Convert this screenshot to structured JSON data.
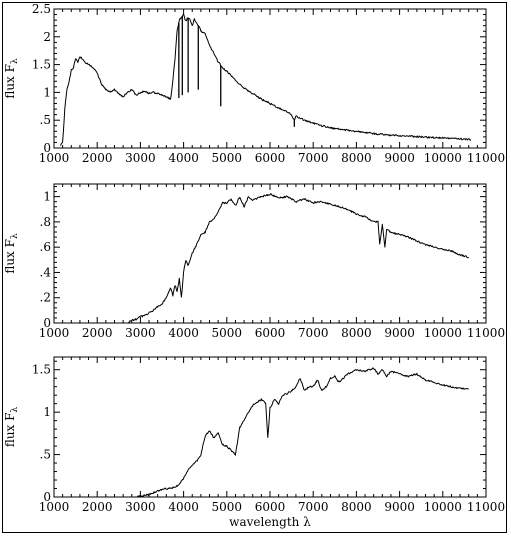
{
  "chart_data": [
    {
      "type": "line",
      "title": "",
      "xlabel": "",
      "ylabel": "flux F",
      "ylabel_sub": "λ",
      "xlim": [
        1000,
        11000
      ],
      "ylim": [
        0,
        2.5
      ],
      "xticks": [
        1000,
        2000,
        3000,
        4000,
        5000,
        6000,
        7000,
        8000,
        9000,
        10000,
        11000
      ],
      "xtick_labels": [
        "1000",
        "2000",
        "3000",
        "4000",
        "5000",
        "6000",
        "7000",
        "8000",
        "9000",
        "10000",
        "11000"
      ],
      "yticks": [
        0,
        0.5,
        1,
        1.5,
        2,
        2.5
      ],
      "ytick_labels": [
        "0",
        ".5",
        "1",
        "1.5",
        "2",
        "2.5"
      ],
      "grid": false,
      "series": [
        {
          "x": [
            1150,
            1200,
            1250,
            1300,
            1350,
            1400,
            1450,
            1500,
            1550,
            1600,
            1700,
            1800,
            1900,
            2000,
            2100,
            2200,
            2300,
            2400,
            2500,
            2600,
            2700,
            2800,
            2900,
            3000,
            3100,
            3200,
            3300,
            3400,
            3500,
            3600,
            3700,
            3750,
            3800,
            3850,
            3900,
            3950,
            4000,
            4050,
            4100,
            4150,
            4200,
            4250,
            4300,
            4350,
            4400,
            4500,
            4600,
            4700,
            4800,
            4900,
            5000,
            5200,
            5400,
            5600,
            5800,
            6000,
            6200,
            6400,
            6500,
            6560,
            6600,
            6800,
            7000,
            7200,
            7500,
            8000,
            8500,
            9000,
            9500,
            10000,
            10500,
            10650
          ],
          "y": [
            0.05,
            0.1,
            0.7,
            1.05,
            1.2,
            1.4,
            1.45,
            1.6,
            1.55,
            1.65,
            1.55,
            1.5,
            1.45,
            1.35,
            1.15,
            1.05,
            1.0,
            1.05,
            0.98,
            0.92,
            1.0,
            1.05,
            0.95,
            1.0,
            1.02,
            0.98,
            1.0,
            0.98,
            0.95,
            0.92,
            0.88,
            1.2,
            1.6,
            2.1,
            2.3,
            2.35,
            2.4,
            2.28,
            2.35,
            2.3,
            2.2,
            2.32,
            2.25,
            2.2,
            2.1,
            2.05,
            1.85,
            1.7,
            1.55,
            1.45,
            1.38,
            1.22,
            1.08,
            0.98,
            0.88,
            0.8,
            0.72,
            0.65,
            0.6,
            0.5,
            0.57,
            0.5,
            0.45,
            0.4,
            0.35,
            0.3,
            0.25,
            0.22,
            0.2,
            0.18,
            0.16,
            0.15
          ]
        }
      ],
      "absorption_lines": [
        {
          "x": 3890,
          "y_min": 0.9
        },
        {
          "x": 3970,
          "y_min": 0.95
        },
        {
          "x": 4105,
          "y_min": 1.0
        },
        {
          "x": 4340,
          "y_min": 1.05
        },
        {
          "x": 4860,
          "y_min": 0.75
        },
        {
          "x": 6563,
          "y_min": 0.38
        }
      ]
    },
    {
      "type": "line",
      "title": "",
      "xlabel": "",
      "ylabel": "flux F",
      "ylabel_sub": "λ",
      "xlim": [
        1000,
        11000
      ],
      "ylim": [
        0,
        1.1
      ],
      "xticks": [
        1000,
        2000,
        3000,
        4000,
        5000,
        6000,
        7000,
        8000,
        9000,
        10000,
        11000
      ],
      "xtick_labels": [
        "1000",
        "2000",
        "3000",
        "4000",
        "5000",
        "6000",
        "7000",
        "8000",
        "9000",
        "10000",
        "11000"
      ],
      "yticks": [
        0,
        0.2,
        0.4,
        0.6,
        0.8,
        1
      ],
      "ytick_labels": [
        "0",
        ".2",
        ".4",
        ".6",
        ".8",
        "1"
      ],
      "grid": false,
      "series": [
        {
          "x": [
            2700,
            2800,
            2900,
            3000,
            3100,
            3200,
            3300,
            3400,
            3500,
            3600,
            3700,
            3750,
            3800,
            3850,
            3900,
            3950,
            4000,
            4050,
            4100,
            4200,
            4300,
            4400,
            4500,
            4600,
            4700,
            4800,
            4900,
            5000,
            5100,
            5200,
            5300,
            5400,
            5500,
            5600,
            5800,
            6000,
            6200,
            6400,
            6600,
            6800,
            7000,
            7200,
            7400,
            7600,
            7800,
            8000,
            8200,
            8400,
            8500,
            8540,
            8600,
            8660,
            8700,
            8800,
            9000,
            9200,
            9400,
            9600,
            9800,
            10000,
            10200,
            10400,
            10600
          ],
          "y": [
            0.0,
            0.02,
            0.03,
            0.05,
            0.06,
            0.08,
            0.1,
            0.13,
            0.15,
            0.2,
            0.28,
            0.22,
            0.3,
            0.25,
            0.35,
            0.2,
            0.4,
            0.5,
            0.45,
            0.55,
            0.62,
            0.7,
            0.72,
            0.8,
            0.82,
            0.88,
            0.95,
            0.95,
            0.98,
            0.93,
            1.0,
            0.92,
            1.0,
            0.97,
            1.0,
            1.02,
            0.99,
            1.0,
            0.96,
            0.98,
            0.95,
            0.96,
            0.94,
            0.92,
            0.9,
            0.86,
            0.84,
            0.8,
            0.8,
            0.62,
            0.78,
            0.6,
            0.74,
            0.72,
            0.7,
            0.68,
            0.65,
            0.62,
            0.6,
            0.58,
            0.57,
            0.54,
            0.52
          ]
        }
      ],
      "absorption_lines": []
    },
    {
      "type": "line",
      "title": "",
      "xlabel": "wavelength λ",
      "ylabel": "flux F",
      "ylabel_sub": "λ",
      "xlim": [
        1000,
        11000
      ],
      "ylim": [
        0,
        1.65
      ],
      "xticks": [
        1000,
        2000,
        3000,
        4000,
        5000,
        6000,
        7000,
        8000,
        9000,
        10000,
        11000
      ],
      "xtick_labels": [
        "1000",
        "2000",
        "3000",
        "4000",
        "5000",
        "6000",
        "7000",
        "8000",
        "9000",
        "10000",
        "11000"
      ],
      "yticks": [
        0,
        0.5,
        1,
        1.5
      ],
      "ytick_labels": [
        "0",
        ".5",
        "1",
        "1.5"
      ],
      "grid": false,
      "series": [
        {
          "x": [
            2900,
            3000,
            3100,
            3200,
            3300,
            3400,
            3500,
            3600,
            3700,
            3800,
            3900,
            4000,
            4100,
            4200,
            4300,
            4400,
            4500,
            4600,
            4700,
            4800,
            4900,
            5000,
            5100,
            5200,
            5300,
            5400,
            5500,
            5600,
            5700,
            5800,
            5900,
            5950,
            6000,
            6100,
            6200,
            6300,
            6400,
            6500,
            6600,
            6700,
            6800,
            6900,
            7000,
            7100,
            7200,
            7300,
            7400,
            7500,
            7600,
            7700,
            7800,
            8000,
            8200,
            8400,
            8500,
            8600,
            8700,
            8800,
            9000,
            9200,
            9400,
            9600,
            9800,
            10000,
            10200,
            10400,
            10600
          ],
          "y": [
            0.0,
            0.01,
            0.02,
            0.03,
            0.05,
            0.07,
            0.09,
            0.1,
            0.1,
            0.12,
            0.15,
            0.22,
            0.32,
            0.38,
            0.42,
            0.5,
            0.72,
            0.78,
            0.7,
            0.75,
            0.62,
            0.6,
            0.55,
            0.5,
            0.82,
            0.9,
            1.0,
            1.08,
            1.12,
            1.15,
            1.1,
            0.7,
            1.05,
            1.15,
            1.1,
            1.2,
            1.22,
            1.25,
            1.3,
            1.4,
            1.25,
            1.3,
            1.3,
            1.38,
            1.25,
            1.3,
            1.4,
            1.42,
            1.35,
            1.4,
            1.45,
            1.5,
            1.48,
            1.52,
            1.45,
            1.5,
            1.42,
            1.48,
            1.45,
            1.42,
            1.45,
            1.38,
            1.35,
            1.32,
            1.3,
            1.28,
            1.27
          ]
        }
      ],
      "absorption_lines": []
    }
  ]
}
